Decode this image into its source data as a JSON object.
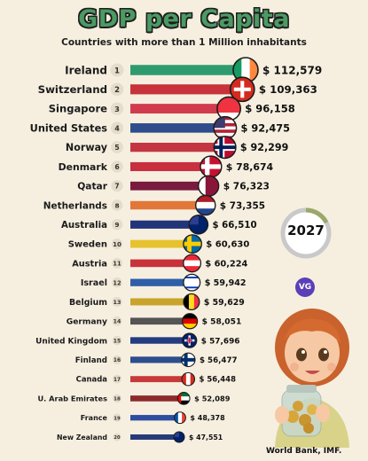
{
  "header": {
    "title": "GDP per Capita",
    "subtitle": "Countries with more than 1 Million inhabitants"
  },
  "year": "2027",
  "logo_text": "VG",
  "source": "World Bank, IMF.",
  "chart_data": {
    "type": "bar",
    "orientation": "horizontal",
    "value_prefix": "$ ",
    "xlim": [
      0,
      112579
    ],
    "categories": [
      "Ireland",
      "Switzerland",
      "Singapore",
      "United States",
      "Norway",
      "Denmark",
      "Qatar",
      "Netherlands",
      "Australia",
      "Sweden",
      "Austria",
      "Israel",
      "Belgium",
      "Germany",
      "United Kingdom",
      "Finland",
      "Canada",
      "U. Arab Emirates",
      "France",
      "New Zealand"
    ],
    "ranks": [
      "1",
      "2",
      "3",
      "4",
      "5",
      "6",
      "7",
      "8",
      "9",
      "10",
      "11",
      "12",
      "13",
      "14",
      "15",
      "16",
      "17",
      "18",
      "19",
      "20"
    ],
    "values": [
      112579,
      109363,
      96158,
      92475,
      92299,
      78674,
      76323,
      73355,
      66510,
      60630,
      60224,
      59942,
      59629,
      58051,
      57696,
      56477,
      56448,
      52089,
      48378,
      47551
    ],
    "value_labels": [
      "$ 112,579",
      "$ 109,363",
      "$ 96,158",
      "$ 92,475",
      "$ 92,299",
      "$ 78,674",
      "$ 76,323",
      "$ 73,355",
      "$ 66,510",
      "$ 60,630",
      "$ 60,224",
      "$ 59,942",
      "$ 59,629",
      "$ 58,051",
      "$ 57,696",
      "$ 56,477",
      "$ 56,448",
      "$ 52,089",
      "$ 48,378",
      "$ 47,551"
    ],
    "bar_colors": [
      "#2e9b6e",
      "#c8323a",
      "#d23b4d",
      "#2d4d8c",
      "#c43542",
      "#c82f3f",
      "#7a1a3e",
      "#e2773a",
      "#23357a",
      "#e7c22f",
      "#c8323a",
      "#2f5fa8",
      "#c9a42b",
      "#555555",
      "#233b80",
      "#2d4d8c",
      "#c83a3a",
      "#8c2a2a",
      "#2d4da0",
      "#283a7a"
    ],
    "flags": [
      "ireland-flag",
      "switzerland-flag",
      "singapore-flag",
      "united-states-flag",
      "norway-flag",
      "denmark-flag",
      "qatar-flag",
      "netherlands-flag",
      "australia-flag",
      "sweden-flag",
      "austria-flag",
      "israel-flag",
      "belgium-flag",
      "germany-flag",
      "united-kingdom-flag",
      "finland-flag",
      "canada-flag",
      "uae-flag",
      "france-flag",
      "new-zealand-flag"
    ]
  }
}
